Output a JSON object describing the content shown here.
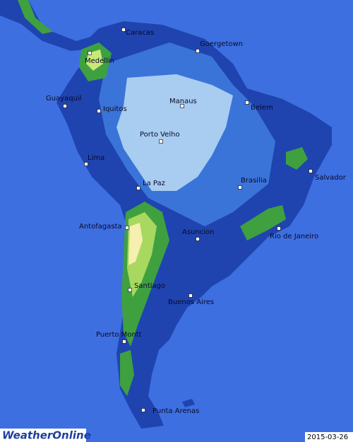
{
  "map": {
    "cities": [
      {
        "name": "Caracas"
      },
      {
        "name": "Goergetown"
      },
      {
        "name": "Medellin"
      },
      {
        "name": "Guayaquil"
      },
      {
        "name": "Iquitos"
      },
      {
        "name": "Manaus"
      },
      {
        "name": "Belem"
      },
      {
        "name": "Porto Velho"
      },
      {
        "name": "Lima"
      },
      {
        "name": "Brasilia"
      },
      {
        "name": "Salvador"
      },
      {
        "name": "La Paz"
      },
      {
        "name": "Antofagasta"
      },
      {
        "name": "Asuncion"
      },
      {
        "name": "Rio de Janeiro"
      },
      {
        "name": "Santiago"
      },
      {
        "name": "Buenos Aires"
      },
      {
        "name": "Puerto Montt"
      },
      {
        "name": "Punta Arenas"
      }
    ],
    "logo": "WeatherOnline",
    "date": "2015-03-26"
  }
}
